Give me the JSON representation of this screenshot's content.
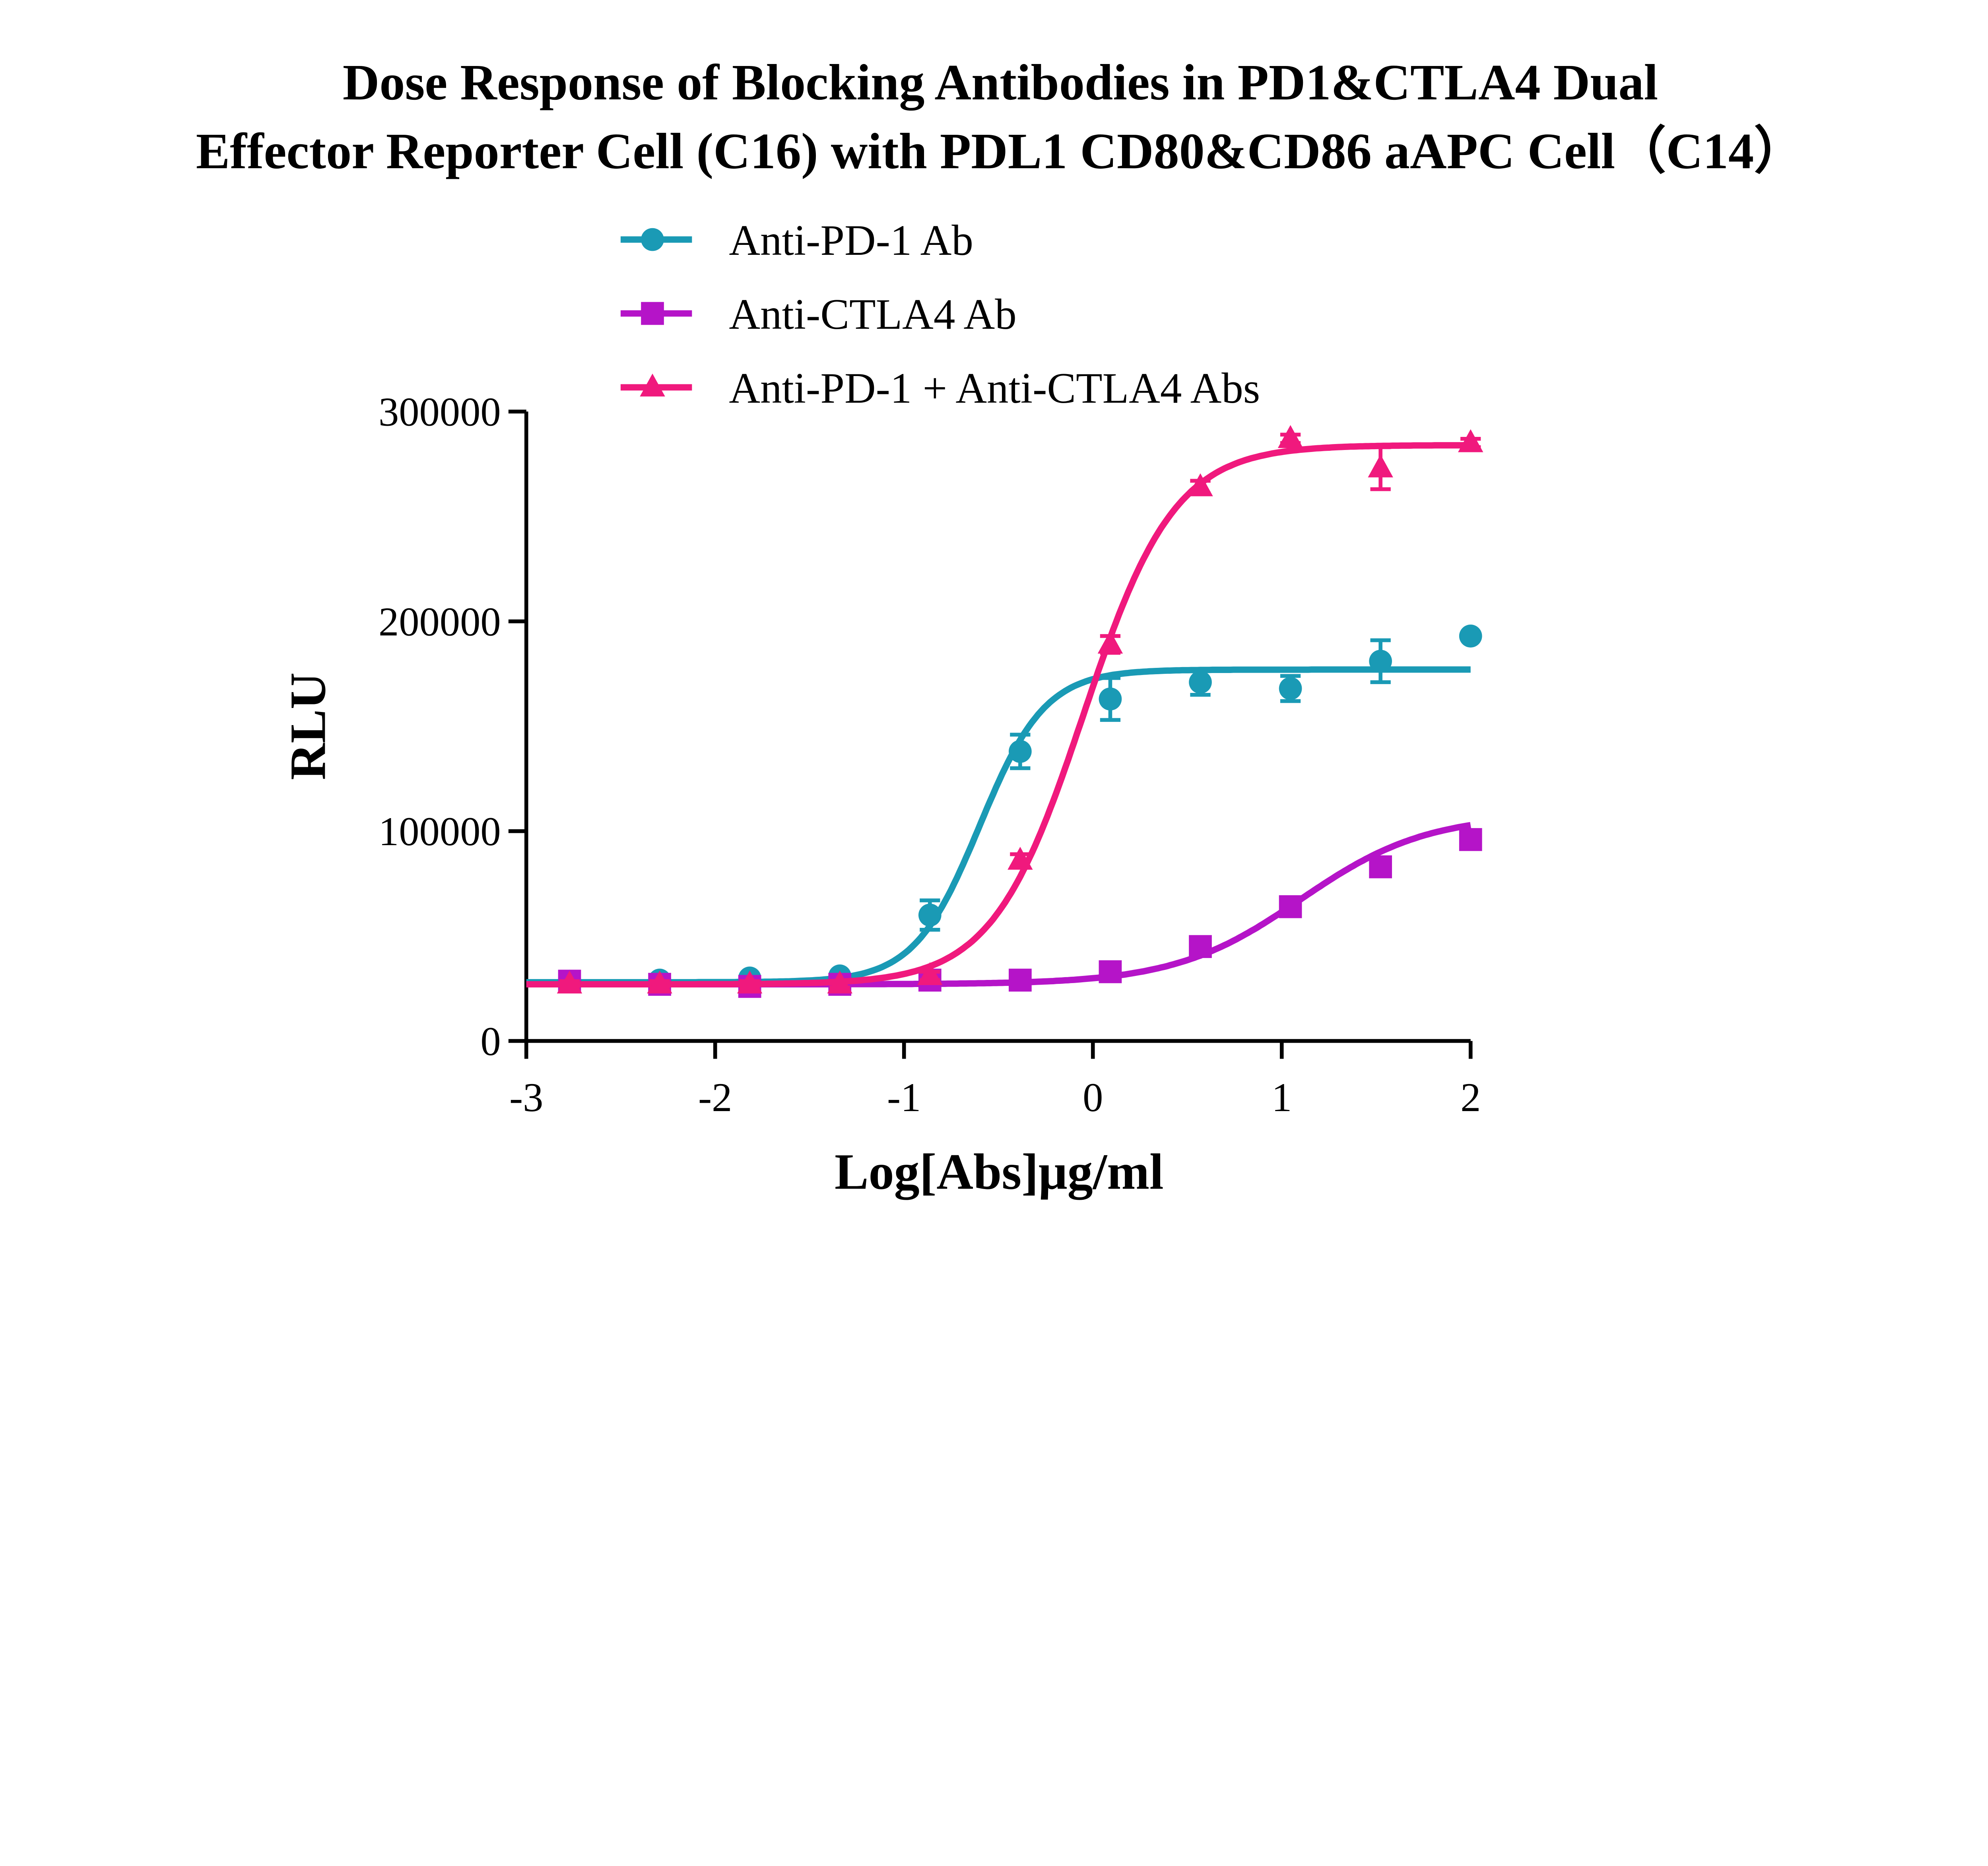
{
  "chart_data": {
    "type": "scatter",
    "title_lines": [
      "Dose Response of Blocking Antibodies in PD1&CTLA4 Dual",
      "Effector Reporter Cell (C16)  with PDL1 CD80&CD86 aAPC Cell（C14）"
    ],
    "xlabel": "Log[Abs]μg/ml",
    "ylabel": "RLU",
    "xlim": [
      -3,
      2
    ],
    "ylim": [
      0,
      300000
    ],
    "xticks": [
      -3,
      -2,
      -1,
      0,
      1,
      2
    ],
    "xtick_labels": [
      "-3",
      "-2",
      "-1",
      "0",
      "1",
      "2"
    ],
    "yticks": [
      0,
      100000,
      200000,
      300000
    ],
    "ytick_labels": [
      "0",
      "100000",
      "200000",
      "300000"
    ],
    "grid": false,
    "legend_placement": "top",
    "x": [
      -2.771,
      -2.294,
      -1.817,
      -1.34,
      -0.863,
      -0.385,
      0.092,
      0.569,
      1.046,
      1.523,
      2.0
    ],
    "series": [
      {
        "name": "Anti-PD-1 Ab",
        "color": "#1a9ab5",
        "marker": "circle",
        "values": [
          28500,
          29000,
          30000,
          31000,
          60000,
          138000,
          163000,
          171000,
          168000,
          181000,
          193000
        ],
        "errors": [
          1500,
          1500,
          1500,
          1500,
          7000,
          8000,
          10000,
          6000,
          6000,
          10000,
          0
        ],
        "fit": {
          "model": "4PL",
          "bottom": 28000,
          "top": 177000,
          "logEC50": -0.6,
          "hill": 2.5
        }
      },
      {
        "name": "Anti-CTLA4 Ab",
        "color": "#b514c8",
        "marker": "square",
        "values": [
          28500,
          27000,
          26000,
          27000,
          29000,
          29000,
          33000,
          45000,
          64000,
          83000,
          96000
        ],
        "errors": [
          1500,
          1500,
          1500,
          1500,
          1500,
          1500,
          2000,
          2000,
          2000,
          2000,
          4000
        ],
        "fit": {
          "model": "4PL",
          "bottom": 27000,
          "top": 108000,
          "logEC50": 1.1,
          "hill": 1.3
        }
      },
      {
        "name": "Anti-PD-1 + Anti-CTLA4 Abs",
        "color": "#f0197d",
        "marker": "triangle",
        "values": [
          27000,
          27000,
          27000,
          27000,
          31000,
          86000,
          189000,
          264000,
          287000,
          273000,
          285000
        ],
        "errors": [
          1500,
          1500,
          1500,
          1500,
          2000,
          3000,
          4000,
          3000,
          2000,
          10000,
          2000
        ],
        "fit": {
          "model": "4PL",
          "bottom": 27000,
          "top": 284000,
          "logEC50": -0.05,
          "hill": 1.8
        }
      }
    ]
  }
}
